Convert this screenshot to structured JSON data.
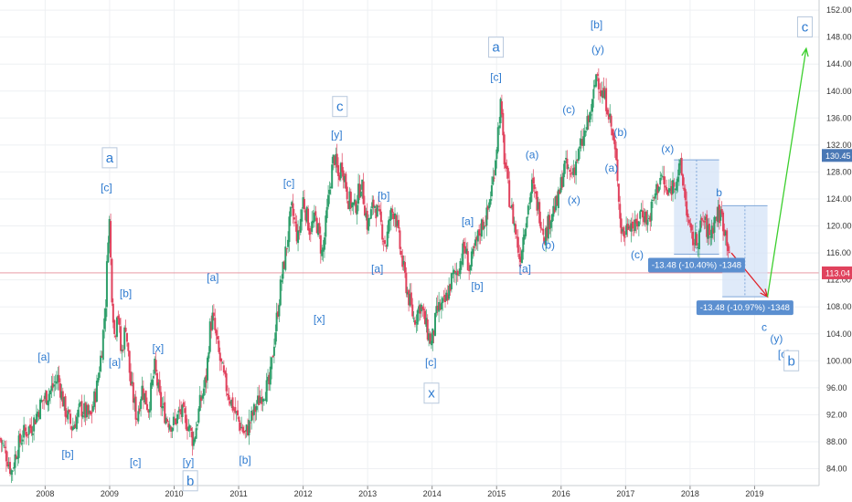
{
  "colors": {
    "up": "#2e9e6a",
    "down": "#e0425d",
    "accent": "#2f7bd0",
    "projection_green": "#3ccf2e",
    "projection_red": "#e0242c",
    "price_line": "#e58b97",
    "price_tag": "#e0425d",
    "prev_tag": "#4a78b5",
    "range_fill": "#d4e3f7"
  },
  "chart_data": {
    "type": "candlestick",
    "title": "",
    "xlabel": "",
    "ylabel": "",
    "x_ticks": [
      "2008",
      "2009",
      "2010",
      "2011",
      "2012",
      "2013",
      "2014",
      "2015",
      "2016",
      "2017",
      "2018",
      "2019"
    ],
    "y_ticks": [
      "84.00",
      "88.00",
      "92.00",
      "96.00",
      "100.00",
      "104.00",
      "108.00",
      "112.00",
      "116.00",
      "120.00",
      "124.00",
      "128.00",
      "132.00",
      "136.00",
      "140.00",
      "144.00",
      "148.00",
      "152.00"
    ],
    "ylim": [
      81.5,
      153.5
    ],
    "xlim": [
      2007.3,
      2020.0
    ],
    "grid": true,
    "current_price": "113.04",
    "previous_marker": "130.45",
    "price_path": [
      [
        2007.3,
        88.5
      ],
      [
        2007.4,
        86.0
      ],
      [
        2007.48,
        83.5
      ],
      [
        2007.55,
        86.5
      ],
      [
        2007.65,
        89.0
      ],
      [
        2007.8,
        90.5
      ],
      [
        2007.95,
        94.0
      ],
      [
        2008.08,
        95.5
      ],
      [
        2008.2,
        97.5
      ],
      [
        2008.3,
        93.0
      ],
      [
        2008.42,
        90.0
      ],
      [
        2008.55,
        93.0
      ],
      [
        2008.7,
        91.5
      ],
      [
        2008.8,
        96.0
      ],
      [
        2008.88,
        102.0
      ],
      [
        2008.94,
        109.0
      ],
      [
        2008.99,
        122.5
      ],
      [
        2009.03,
        111.0
      ],
      [
        2009.08,
        103.0
      ],
      [
        2009.12,
        108.5
      ],
      [
        2009.18,
        100.5
      ],
      [
        2009.25,
        105.5
      ],
      [
        2009.32,
        97.0
      ],
      [
        2009.42,
        91.5
      ],
      [
        2009.5,
        96.0
      ],
      [
        2009.6,
        93.0
      ],
      [
        2009.7,
        99.0
      ],
      [
        2009.78,
        94.0
      ],
      [
        2009.88,
        91.5
      ],
      [
        2009.98,
        90.5
      ],
      [
        2010.1,
        92.5
      ],
      [
        2010.22,
        90.5
      ],
      [
        2010.3,
        88.0
      ],
      [
        2010.4,
        93.5
      ],
      [
        2010.5,
        97.5
      ],
      [
        2010.55,
        104.5
      ],
      [
        2010.6,
        106.5
      ],
      [
        2010.68,
        101.5
      ],
      [
        2010.78,
        97.0
      ],
      [
        2010.9,
        93.5
      ],
      [
        2011.0,
        91.0
      ],
      [
        2011.1,
        89.0
      ],
      [
        2011.22,
        92.0
      ],
      [
        2011.35,
        95.0
      ],
      [
        2011.48,
        96.5
      ],
      [
        2011.55,
        103.0
      ],
      [
        2011.65,
        111.0
      ],
      [
        2011.75,
        117.5
      ],
      [
        2011.82,
        122.5
      ],
      [
        2011.92,
        118.0
      ],
      [
        2012.0,
        124.0
      ],
      [
        2012.1,
        119.5
      ],
      [
        2012.2,
        121.0
      ],
      [
        2012.3,
        115.5
      ],
      [
        2012.36,
        121.0
      ],
      [
        2012.42,
        126.5
      ],
      [
        2012.48,
        130.5
      ],
      [
        2012.55,
        127.0
      ],
      [
        2012.6,
        129.5
      ],
      [
        2012.7,
        124.0
      ],
      [
        2012.8,
        122.5
      ],
      [
        2012.9,
        126.5
      ],
      [
        2013.0,
        120.0
      ],
      [
        2013.1,
        123.5
      ],
      [
        2013.2,
        120.5
      ],
      [
        2013.28,
        117.0
      ],
      [
        2013.35,
        121.5
      ],
      [
        2013.42,
        122.5
      ],
      [
        2013.52,
        115.5
      ],
      [
        2013.62,
        110.0
      ],
      [
        2013.72,
        106.0
      ],
      [
        2013.82,
        108.5
      ],
      [
        2013.92,
        104.5
      ],
      [
        2013.99,
        102.5
      ],
      [
        2014.08,
        107.5
      ],
      [
        2014.2,
        108.5
      ],
      [
        2014.3,
        112.0
      ],
      [
        2014.4,
        113.5
      ],
      [
        2014.5,
        117.0
      ],
      [
        2014.58,
        113.5
      ],
      [
        2014.66,
        116.5
      ],
      [
        2014.76,
        120.0
      ],
      [
        2014.85,
        121.5
      ],
      [
        2014.94,
        126.5
      ],
      [
        2015.0,
        132.0
      ],
      [
        2015.06,
        138.0
      ],
      [
        2015.12,
        130.0
      ],
      [
        2015.2,
        124.0
      ],
      [
        2015.28,
        120.0
      ],
      [
        2015.36,
        115.0
      ],
      [
        2015.45,
        121.0
      ],
      [
        2015.55,
        126.0
      ],
      [
        2015.65,
        122.5
      ],
      [
        2015.75,
        118.5
      ],
      [
        2015.85,
        122.0
      ],
      [
        2015.95,
        123.5
      ],
      [
        2016.05,
        129.0
      ],
      [
        2016.15,
        127.5
      ],
      [
        2016.25,
        130.0
      ],
      [
        2016.35,
        133.0
      ],
      [
        2016.48,
        137.5
      ],
      [
        2016.55,
        143.0
      ],
      [
        2016.62,
        140.0
      ],
      [
        2016.72,
        138.0
      ],
      [
        2016.82,
        132.0
      ],
      [
        2016.88,
        127.0
      ],
      [
        2016.92,
        120.0
      ],
      [
        2016.98,
        118.5
      ],
      [
        2017.05,
        121.0
      ],
      [
        2017.15,
        119.5
      ],
      [
        2017.25,
        122.5
      ],
      [
        2017.35,
        120.5
      ],
      [
        2017.45,
        124.5
      ],
      [
        2017.55,
        127.5
      ],
      [
        2017.65,
        124.5
      ],
      [
        2017.75,
        126.5
      ],
      [
        2017.85,
        128.5
      ],
      [
        2017.92,
        124.5
      ],
      [
        2018.0,
        118.5
      ],
      [
        2018.1,
        117.5
      ],
      [
        2018.2,
        121.0
      ],
      [
        2018.3,
        118.5
      ],
      [
        2018.4,
        121.5
      ],
      [
        2018.48,
        121.8
      ],
      [
        2018.55,
        119.0
      ],
      [
        2018.62,
        116.0
      ]
    ],
    "annotations": [
      {
        "text": "a",
        "x": 2009.0,
        "y": 129.7,
        "boxed": true
      },
      {
        "text": "[c]",
        "x": 2008.95,
        "y": 125.4
      },
      {
        "text": "[a]",
        "x": 2007.98,
        "y": 100.3
      },
      {
        "text": "[b]",
        "x": 2008.35,
        "y": 85.9
      },
      {
        "text": "[b]",
        "x": 2009.25,
        "y": 109.7
      },
      {
        "text": "[a]",
        "x": 2009.08,
        "y": 99.5
      },
      {
        "text": "[c]",
        "x": 2009.4,
        "y": 84.7
      },
      {
        "text": "[x]",
        "x": 2009.75,
        "y": 101.6
      },
      {
        "text": "[y]",
        "x": 2010.22,
        "y": 84.7
      },
      {
        "text": "b",
        "x": 2010.25,
        "y": 81.8,
        "boxed": true
      },
      {
        "text": "[a]",
        "x": 2010.6,
        "y": 112.1
      },
      {
        "text": "[b]",
        "x": 2011.1,
        "y": 85.0
      },
      {
        "text": "[c]",
        "x": 2011.78,
        "y": 126.1
      },
      {
        "text": "[x]",
        "x": 2012.25,
        "y": 105.9
      },
      {
        "text": "c",
        "x": 2012.57,
        "y": 137.3,
        "boxed": true
      },
      {
        "text": "[y]",
        "x": 2012.52,
        "y": 133.3
      },
      {
        "text": "[b]",
        "x": 2013.25,
        "y": 124.2
      },
      {
        "text": "[a]",
        "x": 2013.15,
        "y": 113.4
      },
      {
        "text": "[c]",
        "x": 2013.98,
        "y": 99.5
      },
      {
        "text": "x",
        "x": 2013.99,
        "y": 94.8,
        "boxed": true
      },
      {
        "text": "[a]",
        "x": 2014.55,
        "y": 120.4
      },
      {
        "text": "[b]",
        "x": 2014.7,
        "y": 110.8
      },
      {
        "text": "a",
        "x": 2014.99,
        "y": 146.1,
        "boxed": true
      },
      {
        "text": "[c]",
        "x": 2014.99,
        "y": 141.8
      },
      {
        "text": "[a]",
        "x": 2015.44,
        "y": 113.4
      },
      {
        "text": "(a)",
        "x": 2015.55,
        "y": 130.3
      },
      {
        "text": "(b)",
        "x": 2015.8,
        "y": 116.9
      },
      {
        "text": "(c)",
        "x": 2016.12,
        "y": 137.0
      },
      {
        "text": "(x)",
        "x": 2016.2,
        "y": 123.6
      },
      {
        "text": "[b]",
        "x": 2016.55,
        "y": 149.6
      },
      {
        "text": "(y)",
        "x": 2016.57,
        "y": 145.9
      },
      {
        "text": "(b)",
        "x": 2016.92,
        "y": 133.6
      },
      {
        "text": "(a)",
        "x": 2016.78,
        "y": 128.3
      },
      {
        "text": "(c)",
        "x": 2017.18,
        "y": 115.5
      },
      {
        "text": "(x)",
        "x": 2017.65,
        "y": 131.2
      },
      {
        "text": "b",
        "x": 2018.45,
        "y": 124.7
      },
      {
        "text": "c",
        "x": 2019.15,
        "y": 104.7
      },
      {
        "text": "(y)",
        "x": 2019.34,
        "y": 103.0
      },
      {
        "text": "[c]",
        "x": 2019.45,
        "y": 100.7
      },
      {
        "text": "b",
        "x": 2019.57,
        "y": 99.6,
        "boxed": true
      },
      {
        "text": "c",
        "x": 2019.78,
        "y": 149.1,
        "boxed": true
      }
    ],
    "measure_1": {
      "label": "-13.48 (-10.40%) -1348",
      "x0": 2017.75,
      "x1": 2018.45,
      "y_top": 129.8,
      "y_bot": 115.8
    },
    "measure_2": {
      "label": "-13.48 (-10.97%) -1348",
      "x0": 2018.5,
      "x1": 2019.2,
      "y_top": 123.0,
      "y_bot": 109.5
    },
    "projection_red": {
      "from": [
        2018.64,
        116.0
      ],
      "to": [
        2019.2,
        109.5
      ]
    },
    "projection_green": {
      "from": [
        2019.2,
        109.5
      ],
      "to": [
        2019.8,
        146.3
      ]
    }
  }
}
